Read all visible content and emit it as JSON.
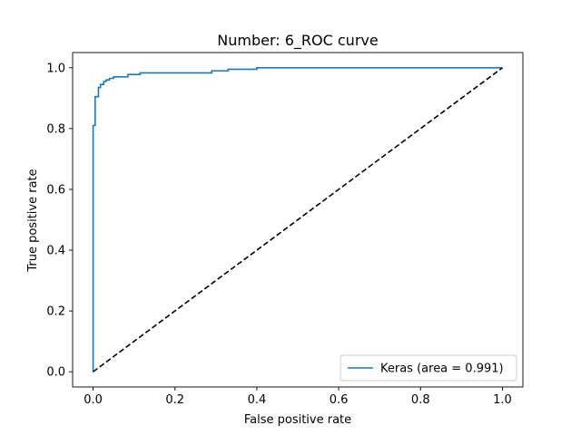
{
  "chart_data": {
    "type": "line",
    "title": "Number:  6_ROC curve",
    "xlabel": "False positive rate",
    "ylabel": "True positive rate",
    "xlim": [
      0.0,
      1.0
    ],
    "ylim": [
      0.0,
      1.0
    ],
    "xticks": [
      "0.0",
      "0.2",
      "0.4",
      "0.6",
      "0.8",
      "1.0"
    ],
    "yticks": [
      "0.0",
      "0.2",
      "0.4",
      "0.6",
      "0.8",
      "1.0"
    ],
    "grid": false,
    "legend": {
      "placement": "lower-right",
      "entries": [
        "Keras (area = 0.991)"
      ]
    },
    "series": [
      {
        "name": "Keras (area = 0.991)",
        "color": "#1f77b4",
        "style": "solid",
        "step": true,
        "x": [
          0.0,
          0.0,
          0.005,
          0.005,
          0.013,
          0.013,
          0.018,
          0.018,
          0.026,
          0.026,
          0.032,
          0.032,
          0.04,
          0.04,
          0.05,
          0.05,
          0.085,
          0.085,
          0.115,
          0.115,
          0.29,
          0.29,
          0.33,
          0.33,
          0.4,
          0.4,
          1.0
        ],
        "y": [
          0.0,
          0.81,
          0.81,
          0.905,
          0.905,
          0.935,
          0.935,
          0.945,
          0.945,
          0.955,
          0.955,
          0.96,
          0.96,
          0.965,
          0.965,
          0.97,
          0.97,
          0.978,
          0.978,
          0.983,
          0.983,
          0.99,
          0.99,
          0.995,
          0.995,
          1.0,
          1.0
        ]
      },
      {
        "name": "",
        "color": "#000000",
        "style": "dashed",
        "step": false,
        "x": [
          0.0,
          1.0
        ],
        "y": [
          0.0,
          1.0
        ]
      }
    ]
  }
}
